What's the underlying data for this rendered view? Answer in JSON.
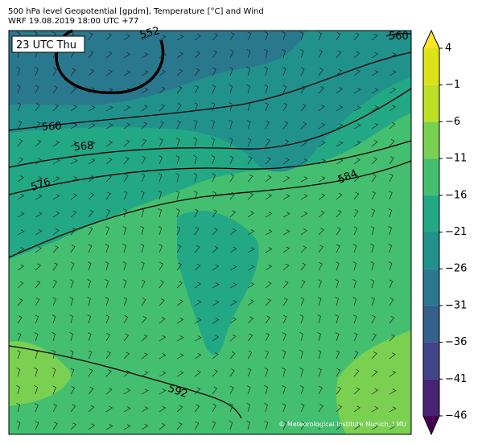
{
  "header": {
    "line1": "500 hPa level Geopotential [gpdm], Temperature [°C] and Wind",
    "line2": "WRF 19.08.2019 18:00 UTC +77"
  },
  "map": {
    "time_label": "23 UTC Thu",
    "contour_labels": [
      "552",
      "560",
      "568",
      "576",
      "584",
      "592",
      "560"
    ],
    "credit": "© Meteorological Institute Munich, LMU"
  },
  "colorbar": {
    "ticks": [
      4,
      {
        "value": -1,
        "label": "−1"
      },
      {
        "value": -6,
        "label": "−6"
      },
      {
        "value": -11,
        "label": "−11"
      },
      {
        "value": -16,
        "label": "−16"
      },
      {
        "value": -21,
        "label": "−21"
      },
      {
        "value": -26,
        "label": "−26"
      },
      {
        "value": -31,
        "label": "−31"
      },
      {
        "value": -36,
        "label": "−36"
      },
      {
        "value": -41,
        "label": "−41"
      },
      {
        "value": -46,
        "label": "−46"
      }
    ],
    "colors": [
      "#440154",
      "#482475",
      "#414487",
      "#355f8d",
      "#2a788e",
      "#21918c",
      "#22a884",
      "#44bf70",
      "#7ad151",
      "#bddf26",
      "#dde318",
      "#fde725"
    ]
  }
}
